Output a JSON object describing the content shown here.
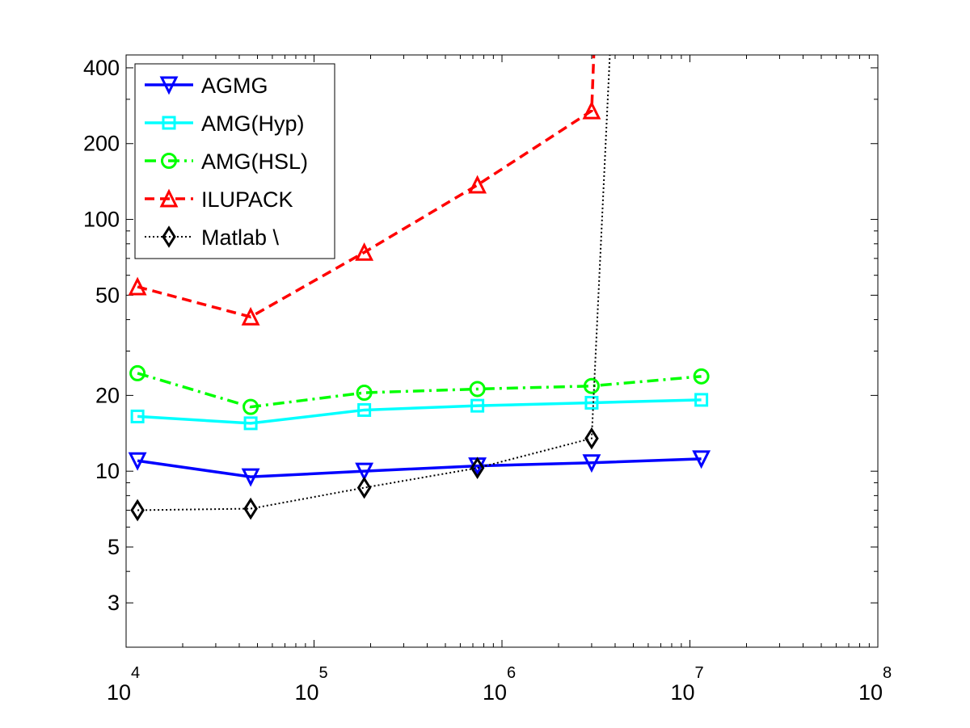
{
  "chart_data": {
    "type": "line",
    "title": "",
    "xlabel": "",
    "ylabel": "",
    "xscale": "log",
    "yscale": "log",
    "xlim": [
      10000,
      100000000
    ],
    "ylim": [
      2,
      450
    ],
    "grid": false,
    "legend_position": "top-left",
    "x_ticks": [
      {
        "base": "10",
        "exp": "4",
        "value": 10000
      },
      {
        "base": "10",
        "exp": "5",
        "value": 100000
      },
      {
        "base": "10",
        "exp": "6",
        "value": 1000000
      },
      {
        "base": "10",
        "exp": "7",
        "value": 10000000
      },
      {
        "base": "10",
        "exp": "8",
        "value": 100000000
      }
    ],
    "y_ticks": [
      {
        "label": "3",
        "value": 3
      },
      {
        "label": "5",
        "value": 5
      },
      {
        "label": "10",
        "value": 10
      },
      {
        "label": "20",
        "value": 20
      },
      {
        "label": "50",
        "value": 50
      },
      {
        "label": "100",
        "value": 100
      },
      {
        "label": "200",
        "value": 200
      },
      {
        "label": "400",
        "value": 400
      }
    ],
    "series": [
      {
        "name": "AGMG",
        "color": "#0000ff",
        "marker": "triangle-down",
        "line_style": "solid",
        "x": [
          11500,
          46000,
          185000,
          740000,
          3000000,
          11500000
        ],
        "y": [
          11,
          9.5,
          10,
          10.5,
          10.8,
          11.2
        ]
      },
      {
        "name": "AMG(Hyp)",
        "color": "#00ffff",
        "marker": "square",
        "line_style": "solid",
        "x": [
          11500,
          46000,
          185000,
          740000,
          3000000,
          11500000
        ],
        "y": [
          16.5,
          15.5,
          17.5,
          18.2,
          18.7,
          19.2
        ]
      },
      {
        "name": "AMG(HSL)",
        "color": "#00ff00",
        "marker": "circle",
        "line_style": "dashdot",
        "x": [
          11500,
          46000,
          185000,
          740000,
          3000000,
          11500000
        ],
        "y": [
          24.5,
          18,
          20.5,
          21.2,
          21.8,
          23.8
        ]
      },
      {
        "name": "ILUPACK",
        "color": "#ff0000",
        "marker": "triangle-up",
        "line_style": "dashed",
        "x": [
          11500,
          46000,
          185000,
          740000,
          3000000,
          3080000
        ],
        "y": [
          54,
          41,
          74,
          137,
          270,
          450
        ]
      },
      {
        "name": "Matlab \\",
        "color": "#000000",
        "marker": "diamond",
        "line_style": "dotted",
        "x": [
          11500,
          46000,
          185000,
          740000,
          3000000,
          3750000
        ],
        "y": [
          7,
          7.1,
          8.6,
          10.3,
          13.5,
          450
        ]
      }
    ]
  }
}
